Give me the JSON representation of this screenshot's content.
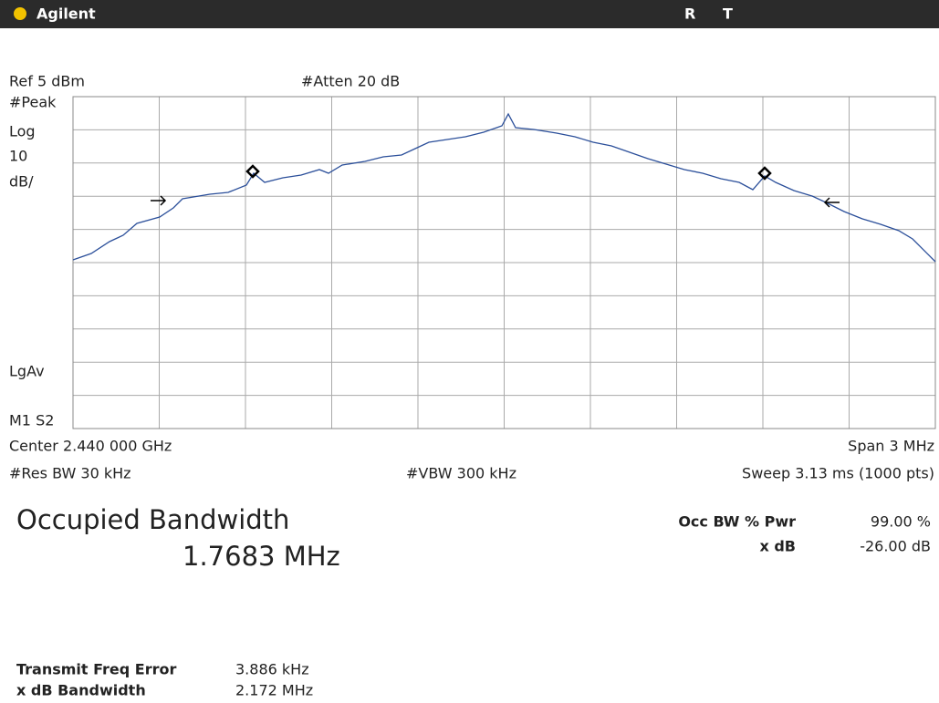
{
  "header": {
    "brand": "Agilent",
    "status": [
      "R",
      "T"
    ]
  },
  "display": {
    "ref": "Ref 5 dBm",
    "atten": "#Atten 20 dB",
    "left_labels": [
      "#Peak",
      "Log",
      "10",
      "dB/"
    ],
    "lgav": "LgAv",
    "marker": "M1  S2",
    "center": "Center 2.440 000 GHz",
    "span": "Span 3 MHz",
    "res_bw": "#Res BW 30 kHz",
    "vbw": "#VBW 300 kHz",
    "sweep": "Sweep 3.13 ms (1000 pts)"
  },
  "results": {
    "title": "Occupied Bandwidth",
    "value": "1.7683 MHz",
    "occ_bw_label": "Occ BW % Pwr",
    "occ_bw_value": "99.00 %",
    "xdb_label": "x dB",
    "xdb_value": "-26.00 dB",
    "freq_error_label": "Transmit Freq Error",
    "freq_error_value": "3.886 kHz",
    "xdb_bw_label": "x dB Bandwidth",
    "xdb_bw_value": "2.172 MHz"
  }
}
